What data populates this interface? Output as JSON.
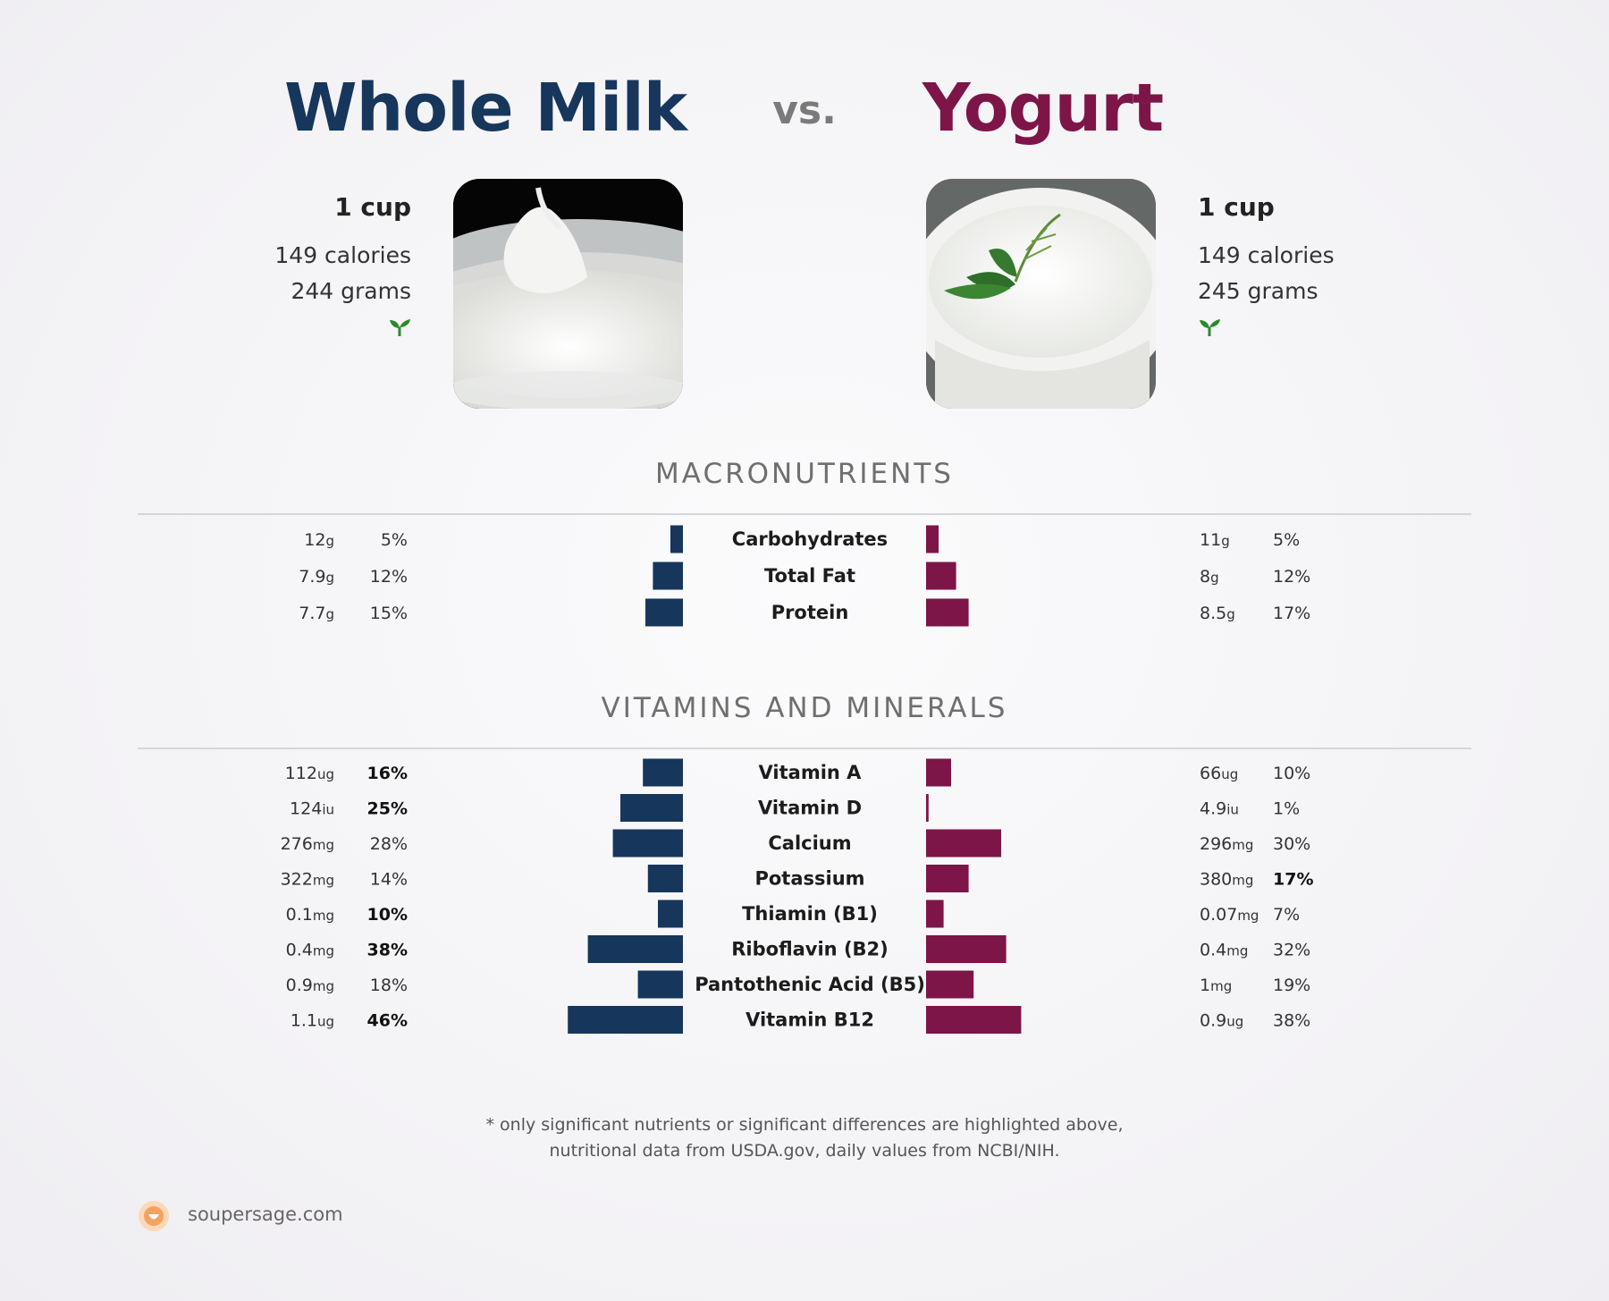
{
  "header": {
    "left_title": "Whole Milk",
    "vs": "vs.",
    "right_title": "Yogurt"
  },
  "left": {
    "serving": "1 cup",
    "calories": "149 calories",
    "grams": "244 grams"
  },
  "right": {
    "serving": "1 cup",
    "calories": "149 calories",
    "grams": "245 grams"
  },
  "colors": {
    "left": "#16365c",
    "right": "#7d1548",
    "sprout": "#2a8a2a"
  },
  "icons": {
    "vegetarian": "sprout-icon",
    "brand": "soupersage-logo"
  },
  "sections": {
    "macros": "MACRONUTRIENTS",
    "vitamins": "VITAMINS AND MINERALS"
  },
  "chart_data": [
    {
      "type": "bar",
      "title": "MACRONUTRIENTS",
      "categories": [
        "Carbohydrates",
        "Total Fat",
        "Protein"
      ],
      "series": [
        {
          "name": "Whole Milk",
          "amounts": [
            "12",
            "7.9",
            "7.7"
          ],
          "units": [
            "g",
            "g",
            "g"
          ],
          "values": [
            5,
            12,
            15
          ],
          "pct_labels": [
            "5%",
            "12%",
            "15%"
          ],
          "bold": [
            false,
            false,
            false
          ]
        },
        {
          "name": "Yogurt",
          "amounts": [
            "11",
            "8",
            "8.5"
          ],
          "units": [
            "g",
            "g",
            "g"
          ],
          "values": [
            5,
            12,
            17
          ],
          "pct_labels": [
            "5%",
            "12%",
            "17%"
          ],
          "bold": [
            false,
            false,
            false
          ]
        }
      ]
    },
    {
      "type": "bar",
      "title": "VITAMINS AND MINERALS",
      "categories": [
        "Vitamin A",
        "Vitamin D",
        "Calcium",
        "Potassium",
        "Thiamin (B1)",
        "Riboflavin (B2)",
        "Pantothenic Acid (B5)",
        "Vitamin B12"
      ],
      "series": [
        {
          "name": "Whole Milk",
          "amounts": [
            "112",
            "124",
            "276",
            "322",
            "0.1",
            "0.4",
            "0.9",
            "1.1"
          ],
          "units": [
            "ug",
            "iu",
            "mg",
            "mg",
            "mg",
            "mg",
            "mg",
            "ug"
          ],
          "values": [
            16,
            25,
            28,
            14,
            10,
            38,
            18,
            46
          ],
          "pct_labels": [
            "16%",
            "25%",
            "28%",
            "14%",
            "10%",
            "38%",
            "18%",
            "46%"
          ],
          "bold": [
            true,
            true,
            false,
            false,
            true,
            true,
            false,
            true
          ]
        },
        {
          "name": "Yogurt",
          "amounts": [
            "66",
            "4.9",
            "296",
            "380",
            "0.07",
            "0.4",
            "1",
            "0.9"
          ],
          "units": [
            "ug",
            "iu",
            "mg",
            "mg",
            "mg",
            "mg",
            "mg",
            "ug"
          ],
          "values": [
            10,
            1,
            30,
            17,
            7,
            32,
            19,
            38
          ],
          "pct_labels": [
            "10%",
            "1%",
            "30%",
            "17%",
            "7%",
            "32%",
            "19%",
            "38%"
          ],
          "bold": [
            false,
            false,
            false,
            true,
            false,
            false,
            false,
            false
          ]
        }
      ]
    }
  ],
  "footnote": {
    "line1": "* only significant nutrients or significant differences are highlighted above,",
    "line2": "nutritional data from USDA.gov, daily values from NCBI/NIH."
  },
  "brand": "soupersage.com"
}
